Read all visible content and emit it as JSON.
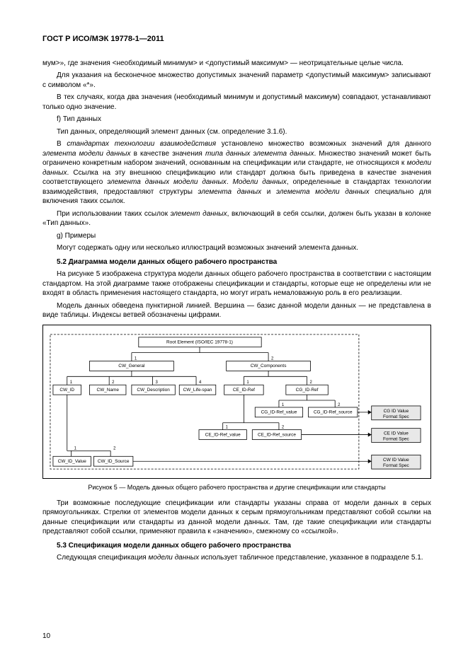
{
  "header": "ГОСТ Р ИСО/МЭК 19778-1—2011",
  "body": {
    "p1": "мум>», где значения <необходимый минимум> и <допустимый максимум> — неотрицательные целые числа.",
    "p2": "Для указания на бесконечное множество допустимых значений параметр <допустимый максимум> записывают с символом «*».",
    "p3": "В тех случаях, когда два значения (необходимый минимум и допустимый максимум) совпадают, устанавливают только одно значение.",
    "p4": "f) Тип данных",
    "p5": "Тип данных, определяющий элемент данных (см. определение 3.1.6).",
    "p6_a": "В ",
    "p6_b": "стандартах технологии взаимодействия",
    "p6_c": " установлено множество возможных значений для данного ",
    "p6_d": "элемента модели данных",
    "p6_e": " в качестве значения ",
    "p6_f": "типа данных элемента данных",
    "p6_g": ". Множество значений может быть ограничено конкретным набором значений, основанным на спецификации или стандарте, не относящихся к ",
    "p6_h": "модели данных",
    "p6_i": ". Ссылка на эту внешнюю спецификацию или стандарт должна быть приведена в качестве значения соответствующего ",
    "p6_j": "элемента данных модели данных",
    "p6_k": ". ",
    "p6_l": "Модели данных",
    "p6_m": ", определенные в стандартах технологии взаимодействия, предоставляют структуры ",
    "p6_n": "элемента данных",
    "p6_o": " и ",
    "p6_p": "элемента модели данных",
    "p6_q": " специально для включения таких ссылок.",
    "p7_a": "При использовании таких ссылок ",
    "p7_b": "элемент данных",
    "p7_c": ", включающий в себя ссылки, должен быть указан в колонке «Тип данных».",
    "p8": "g) Примеры",
    "p9": "Могут содержать одну или несколько иллюстраций возможных значений элемента данных.",
    "s52": "5.2  Диаграмма модели данных общего рабочего пространства",
    "p10": "На рисунке 5 изображена структура модели данных общего рабочего пространства в соответствии с настоящим стандартом. На этой диаграмме также отображены спецификации и стандарты, которые еще не определены или не входят в область применения настоящего стандарта, но могут играть немаловажную роль в его реализации.",
    "p11": "Модель данных обведена пунктирной линией. Вершина — базис данной модели данных — не представлена в виде таблицы. Индексы ветвей обозначены цифрами.",
    "figcap": "Рисунок 5 — Модель данных общего рабочего пространства и другие спецификации или стандарты",
    "p12": "Три возможные последующие спецификации или стандарты указаны справа от модели данных в серых прямоугольниках. Стрелки от элементов модели данных к серым прямоугольникам представляют собой ссылки на данные спецификации или стандарты из данной модели данных. Там, где такие спецификации или стандарты представляют собой ссылки, применяют правила к «значению», смежному со «ссылкой».",
    "s53": "5.3  Спецификация модели данных общего рабочего пространства",
    "p13_a": "Следующая спецификация ",
    "p13_b": "модели данных",
    "p13_c": " использует табличное представление, указанное в подразделе 5.1."
  },
  "diagram": {
    "root": "Root Element (ISO/IEC 19778-1)",
    "cw_general": "CW_General",
    "cw_components": "CW_Components",
    "cw_id": "CW_ID",
    "cw_name": "CW_Name",
    "cw_desc": "CW_Description",
    "cw_life": "CW_Life-span",
    "ce_idref": "CE_ID-Ref",
    "cg_idref": "CG_ID-Ref",
    "cg_val": "CG_ID-Ref_value",
    "cg_src": "CG_ID-Ref_source",
    "ce_val": "CE_ID-Ref_value",
    "ce_src": "CE_ID-Ref_source",
    "cw_idval": "CW_ID_Value",
    "cw_idsrc": "CW_ID_Source",
    "spec_cg": "CG ID Value Format Spec",
    "spec_ce": "CE ID Value Format Spec",
    "spec_cw": "CW ID Value Format Spec"
  },
  "pagenum": "10"
}
